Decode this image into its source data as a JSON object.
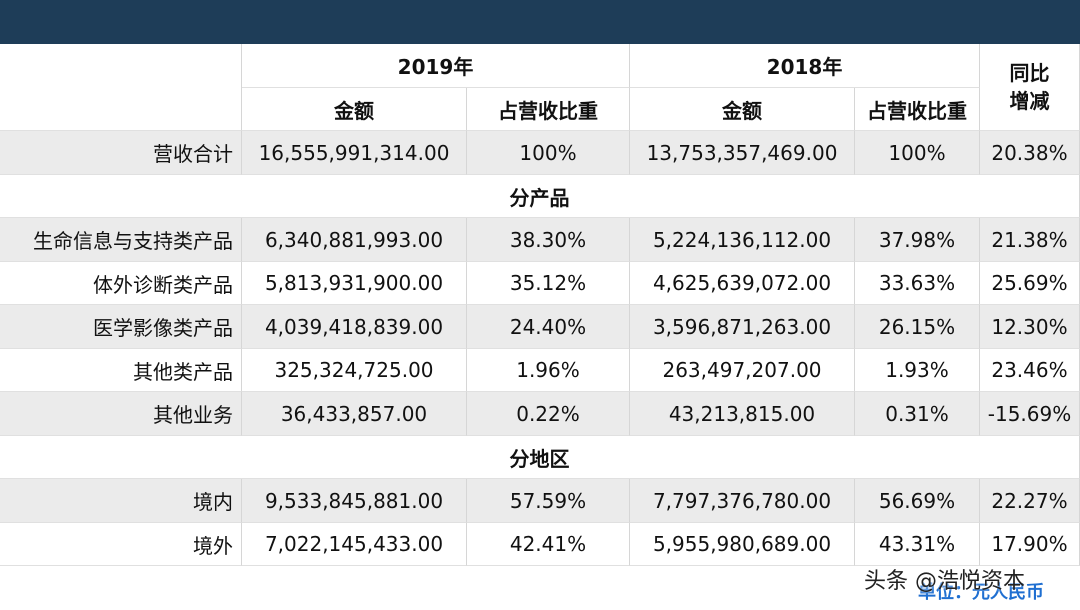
{
  "header": {
    "years": [
      "2019年",
      "2018年"
    ],
    "change": [
      "同比",
      "增减"
    ],
    "sub": [
      "金额",
      "占营收比重",
      "金额",
      "占营收比重"
    ]
  },
  "table": {
    "rows": [
      [
        "营收合计",
        "16,555,991,314.00",
        "100%",
        "13,753,357,469.00",
        "100%",
        "20.38%"
      ],
      [
        "分产品"
      ],
      [
        "生命信息与支持类产品",
        "6,340,881,993.00",
        "38.30%",
        "5,224,136,112.00",
        "37.98%",
        "21.38%"
      ],
      [
        "体外诊断类产品",
        "5,813,931,900.00",
        "35.12%",
        "4,625,639,072.00",
        "33.63%",
        "25.69%"
      ],
      [
        "医学影像类产品",
        "4,039,418,839.00",
        "24.40%",
        "3,596,871,263.00",
        "26.15%",
        "12.30%"
      ],
      [
        "其他类产品",
        "325,324,725.00",
        "1.96%",
        "263,497,207.00",
        "1.93%",
        "23.46%"
      ],
      [
        "其他业务",
        "36,433,857.00",
        "0.22%",
        "43,213,815.00",
        "0.31%",
        "-15.69%"
      ],
      [
        "分地区"
      ],
      [
        "境内",
        "9,533,845,881.00",
        "57.59%",
        "7,797,376,780.00",
        "56.69%",
        "22.27%"
      ],
      [
        "境外",
        "7,022,145,433.00",
        "42.41%",
        "5,955,980,689.00",
        "43.31%",
        "17.90%"
      ]
    ]
  },
  "footer": {
    "unit": "单位：元人民币",
    "watermark": "头条 @浩悦资本"
  }
}
